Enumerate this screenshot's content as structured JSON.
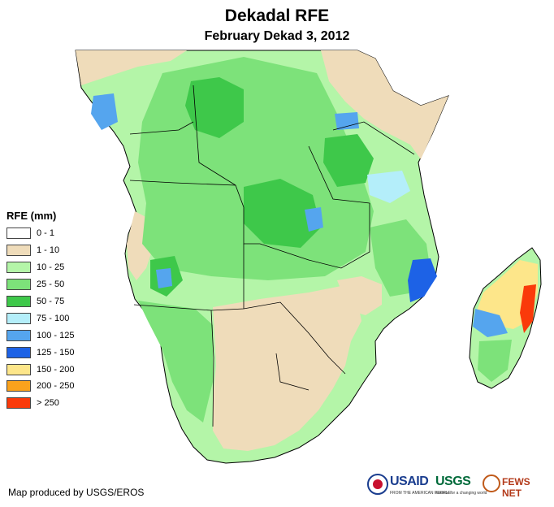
{
  "title": "Dekadal RFE",
  "subtitle": "February Dekad 3, 2012",
  "legend": {
    "title": "RFE (mm)",
    "items": [
      {
        "label": "0 - 1",
        "color": "#ffffff"
      },
      {
        "label": "1 - 10",
        "color": "#efdcba"
      },
      {
        "label": "10 - 25",
        "color": "#b4f5a8"
      },
      {
        "label": "25 - 50",
        "color": "#7de27a"
      },
      {
        "label": "50 - 75",
        "color": "#3ec84a"
      },
      {
        "label": "75 - 100",
        "color": "#b4eefa"
      },
      {
        "label": "100 - 125",
        "color": "#55a5ee"
      },
      {
        "label": "125 - 150",
        "color": "#1d62e6"
      },
      {
        "label": "150 - 200",
        "color": "#fde68a"
      },
      {
        "label": "200 - 250",
        "color": "#faa21c"
      },
      {
        "label": "> 250",
        "color": "#fa3a0a"
      }
    ]
  },
  "credit": "Map produced by USGS/EROS",
  "logos": {
    "usaid": "USAID",
    "usaid_tagline": "FROM THE AMERICAN PEOPLE",
    "usgs": "USGS",
    "usgs_tagline": "science for a changing world",
    "fews": "FEWS NET"
  }
}
